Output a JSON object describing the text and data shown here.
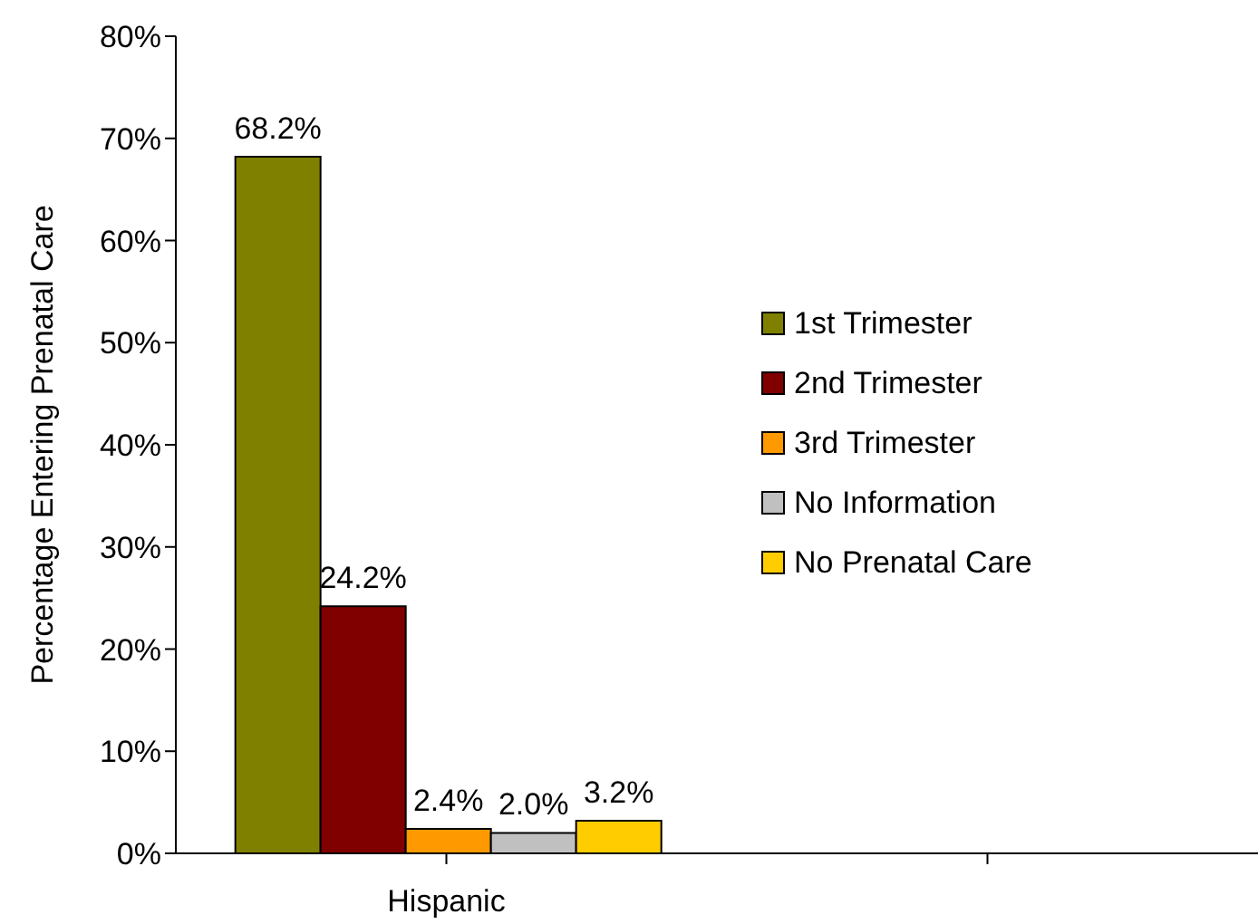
{
  "chart_data": {
    "type": "bar",
    "ylabel": "Percentage Entering Prenatal Care",
    "categories": [
      "Hispanic",
      null
    ],
    "series": [
      {
        "name": "1st Trimester",
        "color": "#808000",
        "values": [
          68.2,
          null
        ],
        "value_labels": [
          "68.2%",
          null
        ]
      },
      {
        "name": "2nd Trimester",
        "color": "#800000",
        "values": [
          24.2,
          null
        ],
        "value_labels": [
          "24.2%",
          null
        ]
      },
      {
        "name": "3rd Trimester",
        "color": "#ff9900",
        "values": [
          2.4,
          null
        ],
        "value_labels": [
          "2.4%",
          null
        ]
      },
      {
        "name": "No Information",
        "color": "#c0c0c0",
        "values": [
          2.0,
          null
        ],
        "value_labels": [
          "2.0%",
          null
        ]
      },
      {
        "name": "No Prenatal Care",
        "color": "#ffcc00",
        "values": [
          3.2,
          null
        ],
        "value_labels": [
          "3.2%",
          null
        ]
      }
    ],
    "ylim": [
      0,
      80
    ],
    "yticks": [
      {
        "value": 0,
        "label": "0%"
      },
      {
        "value": 10,
        "label": "10%"
      },
      {
        "value": 20,
        "label": "20%"
      },
      {
        "value": 30,
        "label": "30%"
      },
      {
        "value": 40,
        "label": "40%"
      },
      {
        "value": 50,
        "label": "50%"
      },
      {
        "value": 60,
        "label": "60%"
      },
      {
        "value": 70,
        "label": "70%"
      },
      {
        "value": 80,
        "label": "80%"
      }
    ],
    "grid": false,
    "legend": "right"
  }
}
